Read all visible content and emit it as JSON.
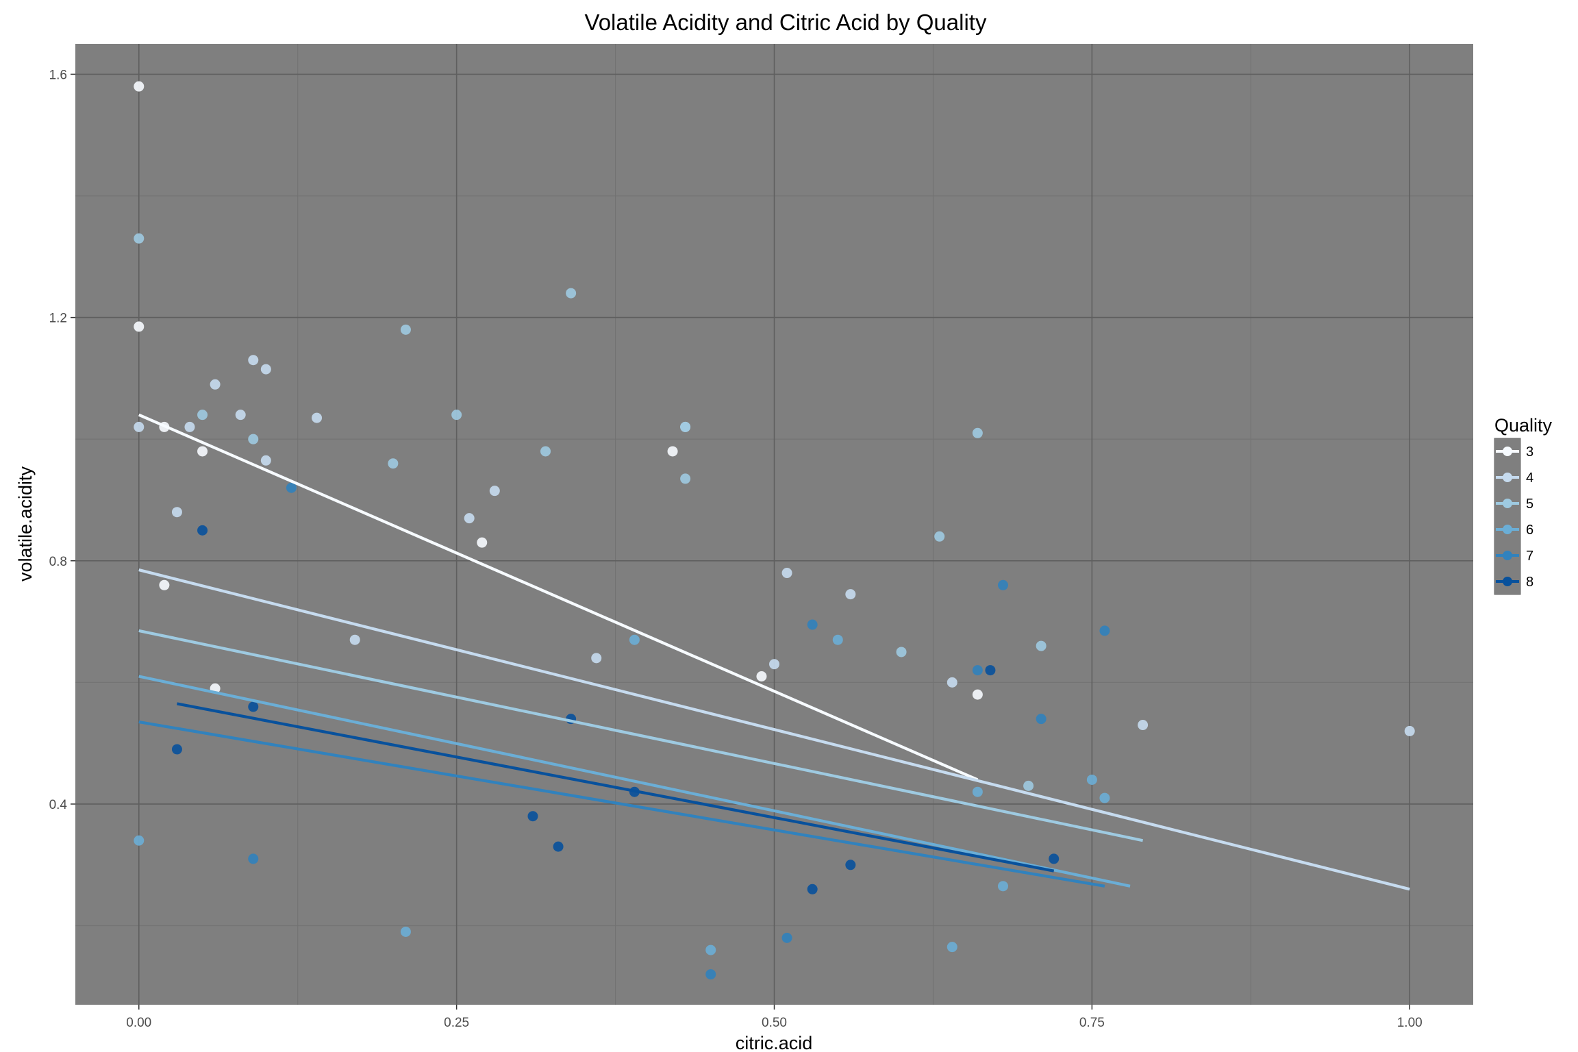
{
  "chart_data": {
    "type": "scatter",
    "title": "Volatile Acidity and Citric Acid by Quality",
    "xlabel": "citric.acid",
    "ylabel": "volatile.acidity",
    "xlim": [
      -0.05,
      1.05
    ],
    "ylim": [
      0.07,
      1.65
    ],
    "x_ticks": [
      "0.00",
      "0.25",
      "0.50",
      "0.75",
      "1.00"
    ],
    "x_tick_values": [
      0,
      0.25,
      0.5,
      0.75,
      1.0
    ],
    "y_ticks": [
      "0.4",
      "0.8",
      "1.2",
      "1.6"
    ],
    "y_tick_values": [
      0.4,
      0.8,
      1.2,
      1.6
    ],
    "grid": true,
    "legend": {
      "title": "Quality",
      "position": "right"
    },
    "background_color": "#7f7f7f",
    "series": [
      {
        "name": "3",
        "color": "#f7fbff",
        "points": [
          [
            0,
            1.58
          ],
          [
            0,
            1.185
          ],
          [
            0.02,
            1.02
          ],
          [
            0.05,
            0.98
          ],
          [
            0.06,
            0.59
          ],
          [
            0.42,
            0.98
          ],
          [
            0.49,
            0.61
          ],
          [
            0.66,
            0.58
          ],
          [
            0.02,
            0.76
          ],
          [
            0.27,
            0.83
          ]
        ],
        "trend": [
          [
            0,
            1.04
          ],
          [
            0.66,
            0.44
          ]
        ]
      },
      {
        "name": "4",
        "color": "#c6dbef",
        "points": [
          [
            0.09,
            1.13
          ],
          [
            0.1,
            1.115
          ],
          [
            0.06,
            1.09
          ],
          [
            0.0,
            1.02
          ],
          [
            0.04,
            1.02
          ],
          [
            0.08,
            1.04
          ],
          [
            0.1,
            0.965
          ],
          [
            0.14,
            1.035
          ],
          [
            0.26,
            0.87
          ],
          [
            0.28,
            0.915
          ],
          [
            0.43,
            1.02
          ],
          [
            0.5,
            0.63
          ],
          [
            0.51,
            0.78
          ],
          [
            0.56,
            0.745
          ],
          [
            0.64,
            0.6
          ],
          [
            0.79,
            0.53
          ],
          [
            1.0,
            0.52
          ],
          [
            0.03,
            0.88
          ],
          [
            0.17,
            0.67
          ],
          [
            0.36,
            0.64
          ]
        ],
        "trend": [
          [
            0,
            0.785
          ],
          [
            1.0,
            0.26
          ]
        ]
      },
      {
        "name": "5",
        "color": "#9ecae1",
        "points": [
          [
            0,
            1.33
          ],
          [
            0.21,
            1.18
          ],
          [
            0.34,
            1.24
          ],
          [
            0.43,
            1.02
          ],
          [
            0.32,
            0.98
          ],
          [
            0.43,
            0.935
          ],
          [
            0.25,
            1.04
          ],
          [
            0.66,
            1.01
          ],
          [
            0.05,
            1.04
          ],
          [
            0.09,
            1.0
          ],
          [
            0.2,
            0.96
          ],
          [
            0.6,
            0.65
          ],
          [
            0.7,
            0.43
          ],
          [
            0.71,
            0.66
          ],
          [
            0.63,
            0.84
          ]
        ],
        "trend": [
          [
            0,
            0.685
          ],
          [
            0.79,
            0.34
          ]
        ]
      },
      {
        "name": "6",
        "color": "#6baed6",
        "points": [
          [
            0,
            0.34
          ],
          [
            0.21,
            0.19
          ],
          [
            0.45,
            0.16
          ],
          [
            0.64,
            0.165
          ],
          [
            0.68,
            0.265
          ],
          [
            0.75,
            0.44
          ],
          [
            0.76,
            0.41
          ],
          [
            0.66,
            0.42
          ],
          [
            0.55,
            0.67
          ],
          [
            0.39,
            0.67
          ]
        ],
        "trend": [
          [
            0,
            0.61
          ],
          [
            0.78,
            0.265
          ]
        ]
      },
      {
        "name": "7",
        "color": "#3182bd",
        "points": [
          [
            0.12,
            0.92
          ],
          [
            0.53,
            0.695
          ],
          [
            0.51,
            0.18
          ],
          [
            0.76,
            0.685
          ],
          [
            0.71,
            0.54
          ],
          [
            0.68,
            0.76
          ],
          [
            0.09,
            0.31
          ],
          [
            0.45,
            0.12
          ],
          [
            0.66,
            0.62
          ]
        ],
        "trend": [
          [
            0,
            0.535
          ],
          [
            0.76,
            0.265
          ]
        ]
      },
      {
        "name": "8",
        "color": "#08519c",
        "points": [
          [
            0.05,
            0.85
          ],
          [
            0.67,
            0.62
          ],
          [
            0.03,
            0.49
          ],
          [
            0.33,
            0.33
          ],
          [
            0.39,
            0.42
          ],
          [
            0.56,
            0.3
          ],
          [
            0.72,
            0.31
          ],
          [
            0.53,
            0.26
          ],
          [
            0.31,
            0.38
          ],
          [
            0.09,
            0.56
          ],
          [
            0.34,
            0.54
          ]
        ],
        "trend": [
          [
            0.03,
            0.565
          ],
          [
            0.72,
            0.29
          ]
        ]
      }
    ]
  }
}
